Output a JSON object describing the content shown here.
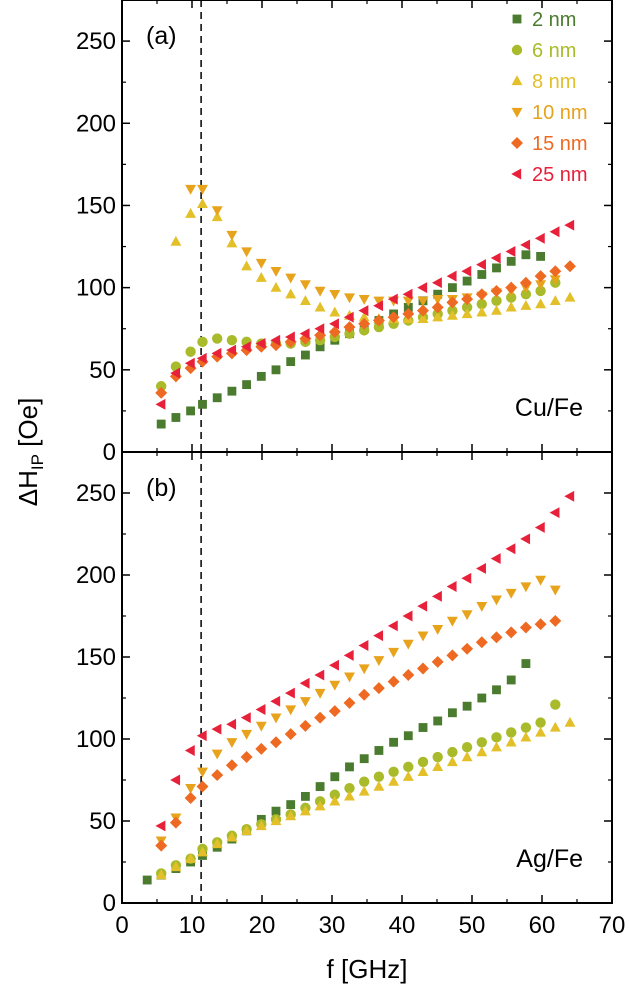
{
  "chart_data": {
    "type": "scatter",
    "x_axis": {
      "label": "f [GHz]",
      "range": [
        0,
        70
      ],
      "ticks": [
        0,
        10,
        20,
        30,
        40,
        50,
        60,
        70
      ],
      "tick_labels": [
        "0",
        "10",
        "20",
        "30",
        "40",
        "50",
        "60",
        "70"
      ]
    },
    "y_axis": {
      "label_main": "ΔH",
      "label_sub": "IP",
      "label_unit": " [Oe]",
      "range": [
        0,
        275
      ],
      "ticks": [
        0,
        50,
        100,
        150,
        200,
        250
      ],
      "tick_labels": [
        "0",
        "50",
        "100",
        "150",
        "200",
        "250"
      ]
    },
    "reference_line_x": 11.3,
    "grid": false,
    "legend_position": "top-right of panel (a)",
    "legend": [
      {
        "label": "2 nm",
        "color": "#4a7b2e",
        "marker": "square"
      },
      {
        "label": "6 nm",
        "color": "#a9bb2a",
        "marker": "circle"
      },
      {
        "label": "8 nm",
        "color": "#e3c02a",
        "marker": "triangle-up"
      },
      {
        "label": "10 nm",
        "color": "#e8a31c",
        "marker": "triangle-down"
      },
      {
        "label": "15 nm",
        "color": "#ee6a22",
        "marker": "diamond"
      },
      {
        "label": "25 nm",
        "color": "#e8213a",
        "marker": "triangle-left"
      }
    ],
    "panels": [
      {
        "tag": "(a)",
        "sample": "Cu/Fe",
        "series": [
          {
            "name": "2 nm",
            "x": [
              5.6,
              7.7,
              9.8,
              11.5,
              13.6,
              15.7,
              17.8,
              19.9,
              22.0,
              24.1,
              26.2,
              28.3,
              30.4,
              32.5,
              34.6,
              36.7,
              38.8,
              40.9,
              43.0,
              45.1,
              47.2,
              49.3,
              51.4,
              53.5,
              55.6,
              57.7,
              59.8
            ],
            "y": [
              17,
              21,
              25,
              29,
              33,
              37,
              41,
              46,
              50,
              55,
              59,
              64,
              68,
              72,
              76,
              80,
              84,
              88,
              92,
              96,
              100,
              104,
              108,
              112,
              116,
              120,
              119
            ]
          },
          {
            "name": "6 nm",
            "x": [
              5.6,
              7.7,
              9.8,
              11.5,
              13.6,
              15.7,
              17.8,
              19.9,
              22.0,
              24.1,
              26.2,
              28.3,
              30.4,
              32.5,
              34.6,
              36.7,
              38.8,
              40.9,
              43.0,
              45.1,
              47.2,
              49.3,
              51.4,
              53.5,
              55.6,
              57.7,
              59.8,
              61.9
            ],
            "y": [
              40,
              52,
              61,
              67,
              69,
              68,
              67,
              66,
              66,
              66,
              67,
              68,
              70,
              72,
              74,
              76,
              78,
              80,
              82,
              84,
              86,
              88,
              90,
              92,
              94,
              96,
              98,
              103
            ]
          },
          {
            "name": "8 nm",
            "x": [
              7.7,
              9.8,
              11.5,
              13.6,
              15.7,
              17.8,
              19.9,
              22.0,
              24.1,
              26.2,
              28.3,
              30.4,
              32.5,
              34.6,
              36.7,
              38.8,
              40.9,
              43.0,
              45.1,
              47.2,
              49.3,
              51.4,
              53.5,
              55.6,
              57.7,
              59.8,
              61.9,
              64.0
            ],
            "y": [
              128,
              145,
              151,
              143,
              127,
              113,
              106,
              100,
              96,
              92,
              88,
              85,
              83,
              82,
              81,
              81,
              81,
              81,
              82,
              83,
              84,
              85,
              86,
              88,
              89,
              90,
              92,
              94
            ]
          },
          {
            "name": "10 nm",
            "x": [
              9.8,
              11.5,
              13.6,
              15.7,
              17.8,
              19.9,
              22.0,
              24.1,
              26.2,
              28.3,
              30.4,
              32.5,
              34.6,
              36.7,
              38.8,
              40.9,
              43.0,
              45.1,
              47.2,
              49.3,
              51.4,
              53.5,
              55.6,
              57.7,
              59.8,
              61.9
            ],
            "y": [
              160,
              160,
              147,
              132,
              122,
              115,
              110,
              106,
              102,
              98,
              96,
              94,
              93,
              92,
              92,
              92,
              92,
              93,
              93,
              94,
              95,
              97,
              98,
              100,
              102,
              105
            ]
          },
          {
            "name": "15 nm",
            "x": [
              5.6,
              7.7,
              9.8,
              11.5,
              13.6,
              15.7,
              17.8,
              19.9,
              22.0,
              24.1,
              26.2,
              28.3,
              30.4,
              32.5,
              34.6,
              36.7,
              38.8,
              40.9,
              43.0,
              45.1,
              47.2,
              49.3,
              51.4,
              53.5,
              55.6,
              57.7,
              59.8,
              61.9,
              64.0
            ],
            "y": [
              36,
              46,
              51,
              55,
              58,
              60,
              62,
              64,
              65,
              67,
              69,
              71,
              73,
              76,
              78,
              80,
              82,
              84,
              86,
              88,
              91,
              93,
              96,
              98,
              100,
              103,
              107,
              110,
              113
            ]
          },
          {
            "name": "25 nm",
            "x": [
              5.6,
              7.7,
              9.8,
              11.5,
              13.6,
              15.7,
              17.8,
              19.9,
              22.0,
              24.1,
              26.2,
              28.3,
              30.4,
              32.5,
              34.6,
              36.7,
              38.8,
              40.9,
              43.0,
              45.1,
              47.2,
              49.3,
              51.4,
              53.5,
              55.6,
              57.7,
              59.8,
              61.9,
              64.0
            ],
            "y": [
              29,
              48,
              54,
              57,
              60,
              62,
              64,
              66,
              68,
              70,
              72,
              75,
              78,
              82,
              86,
              89,
              93,
              96,
              100,
              103,
              107,
              110,
              114,
              118,
              122,
              126,
              130,
              134,
              138
            ]
          }
        ]
      },
      {
        "tag": "(b)",
        "sample": "Ag/Fe",
        "series": [
          {
            "name": "2 nm",
            "x": [
              3.6,
              5.6,
              7.7,
              9.8,
              11.5,
              13.6,
              15.7,
              17.8,
              19.9,
              22.0,
              24.1,
              26.2,
              28.3,
              30.4,
              32.5,
              34.6,
              36.7,
              38.8,
              40.9,
              43.0,
              45.1,
              47.2,
              49.3,
              51.4,
              53.5,
              55.6,
              57.7
            ],
            "y": [
              14,
              17,
              21,
              25,
              29,
              34,
              39,
              44,
              51,
              56,
              60,
              65,
              71,
              77,
              83,
              88,
              93,
              98,
              102,
              107,
              111,
              116,
              120,
              125,
              130,
              136,
              146
            ]
          },
          {
            "name": "6 nm",
            "x": [
              5.6,
              7.7,
              9.8,
              11.5,
              13.6,
              15.7,
              17.8,
              19.9,
              22.0,
              24.1,
              26.2,
              28.3,
              30.4,
              32.5,
              34.6,
              36.7,
              38.8,
              40.9,
              43.0,
              45.1,
              47.2,
              49.3,
              51.4,
              53.5,
              55.6,
              57.7,
              59.8,
              61.9
            ],
            "y": [
              18,
              23,
              27,
              33,
              37,
              41,
              45,
              48,
              51,
              54,
              58,
              62,
              66,
              70,
              74,
              77,
              80,
              83,
              86,
              89,
              92,
              95,
              98,
              101,
              104,
              107,
              110,
              121
            ]
          },
          {
            "name": "8 nm",
            "x": [
              5.6,
              7.7,
              9.8,
              11.5,
              13.6,
              15.7,
              17.8,
              19.9,
              22.0,
              24.1,
              26.2,
              28.3,
              30.4,
              32.5,
              34.6,
              36.7,
              38.8,
              40.9,
              43.0,
              45.1,
              47.2,
              49.3,
              51.4,
              53.5,
              55.6,
              57.7,
              59.8,
              61.9,
              64.0
            ],
            "y": [
              17,
              22,
              27,
              31,
              36,
              40,
              44,
              47,
              50,
              53,
              56,
              59,
              62,
              65,
              68,
              71,
              74,
              77,
              80,
              83,
              86,
              89,
              92,
              95,
              98,
              101,
              104,
              107,
              110
            ]
          },
          {
            "name": "10 nm",
            "x": [
              5.6,
              7.7,
              9.8,
              11.5,
              13.6,
              15.7,
              17.8,
              19.9,
              22.0,
              24.1,
              26.2,
              28.3,
              30.4,
              32.5,
              34.6,
              36.7,
              38.8,
              40.9,
              43.0,
              45.1,
              47.2,
              49.3,
              51.4,
              53.5,
              55.6,
              57.7,
              59.8,
              61.9
            ],
            "y": [
              38,
              52,
              70,
              80,
              91,
              98,
              103,
              108,
              113,
              118,
              123,
              128,
              133,
              138,
              143,
              148,
              153,
              158,
              163,
              167,
              172,
              176,
              181,
              185,
              189,
              193,
              197,
              191
            ]
          },
          {
            "name": "15 nm",
            "x": [
              5.6,
              7.7,
              9.8,
              11.5,
              13.6,
              15.7,
              17.8,
              19.9,
              22.0,
              24.1,
              26.2,
              28.3,
              30.4,
              32.5,
              34.6,
              36.7,
              38.8,
              40.9,
              43.0,
              45.1,
              47.2,
              49.3,
              51.4,
              53.5,
              55.6,
              57.7,
              59.8,
              61.9
            ],
            "y": [
              35,
              49,
              64,
              71,
              78,
              84,
              89,
              94,
              98,
              103,
              108,
              113,
              117,
              122,
              127,
              131,
              135,
              139,
              143,
              147,
              151,
              155,
              159,
              162,
              165,
              168,
              170,
              172
            ]
          },
          {
            "name": "25 nm",
            "x": [
              5.6,
              7.7,
              9.8,
              11.5,
              13.6,
              15.7,
              17.8,
              19.9,
              22.0,
              24.1,
              26.2,
              28.3,
              30.4,
              32.5,
              34.6,
              36.7,
              38.8,
              40.9,
              43.0,
              45.1,
              47.2,
              49.3,
              51.4,
              53.5,
              55.6,
              57.7,
              59.8,
              61.9,
              64.0
            ],
            "y": [
              47,
              75,
              93,
              102,
              106,
              109,
              113,
              118,
              123,
              128,
              134,
              139,
              145,
              151,
              157,
              163,
              169,
              175,
              181,
              187,
              193,
              198,
              204,
              210,
              216,
              222,
              229,
              238,
              248
            ]
          }
        ]
      }
    ]
  }
}
